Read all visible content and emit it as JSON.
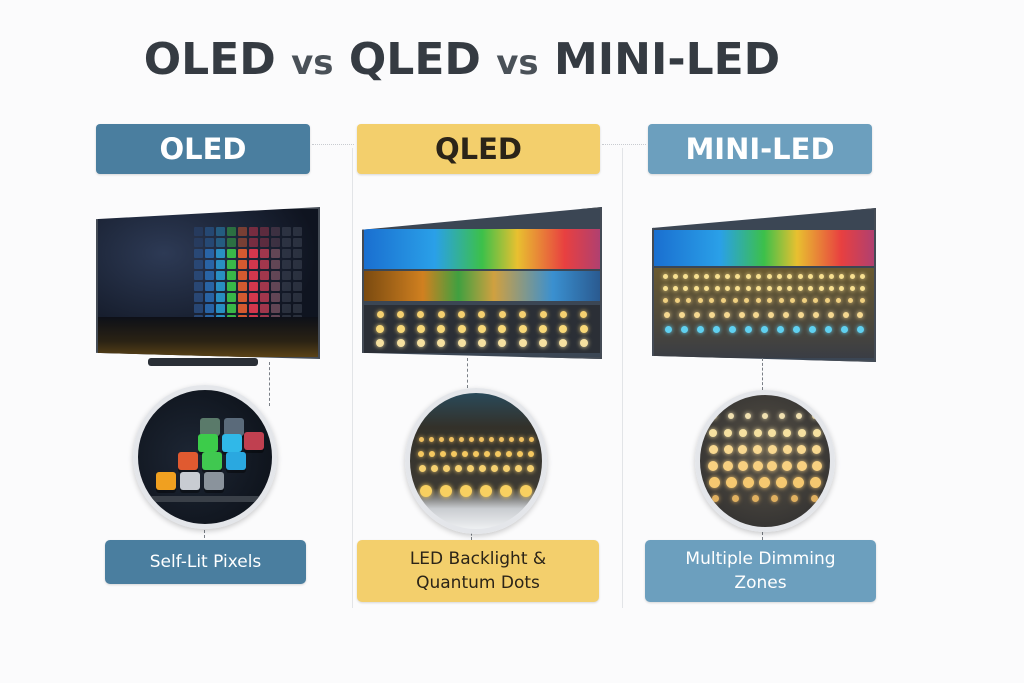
{
  "title": {
    "part1": "OLED",
    "vs1": "vs",
    "part2": "QLED",
    "vs2": "vs",
    "part3": "MINI-LED"
  },
  "columns": [
    {
      "header": "OLED",
      "label": "Self-Lit Pixels",
      "color": "#4a7e9f"
    },
    {
      "header": "QLED",
      "label_line1": "LED Backlight &",
      "label_line2": "Quantum Dots",
      "color": "#f3cf6c"
    },
    {
      "header": "MINI-LED",
      "label_line1": "Multiple Dimming",
      "label_line2": "Zones",
      "color": "#6c9fbe"
    }
  ]
}
